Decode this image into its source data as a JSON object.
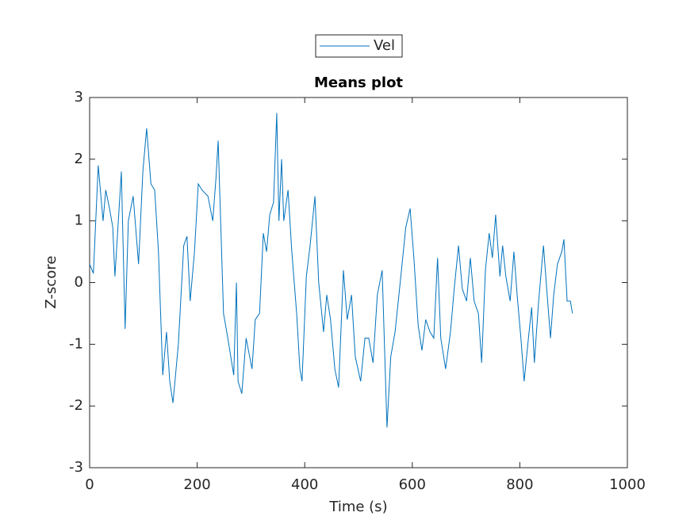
{
  "chart_data": {
    "type": "line",
    "title": "Means plot",
    "xlabel": "Time (s)",
    "ylabel": "Z-score",
    "x": [
      0,
      7,
      16,
      25,
      30,
      37,
      43,
      47,
      52,
      59,
      66,
      72,
      81,
      91,
      99,
      106,
      114,
      121,
      128,
      136,
      143,
      149,
      155,
      165,
      175,
      181,
      187,
      195,
      202,
      209,
      220,
      229,
      235,
      239,
      249,
      257,
      268,
      273,
      276,
      283,
      291,
      302,
      308,
      316,
      323,
      329,
      335,
      342,
      348,
      352,
      357,
      361,
      369,
      376,
      385,
      391,
      395,
      403,
      410,
      419,
      426,
      435,
      441,
      448,
      456,
      463,
      472,
      479,
      487,
      494,
      504,
      512,
      519,
      527,
      535,
      544,
      553,
      560,
      568,
      574,
      581,
      588,
      596,
      603,
      611,
      618,
      625,
      633,
      640,
      647,
      653,
      662,
      671,
      678,
      686,
      693,
      701,
      708,
      715,
      723,
      729,
      736,
      743,
      749,
      755,
      763,
      768,
      774,
      782,
      789,
      795,
      802,
      808,
      816,
      822,
      827,
      835,
      844,
      850,
      857,
      863,
      870,
      878,
      882,
      888,
      894,
      898
    ],
    "series": [
      {
        "name": "Vel",
        "color": "#0072bd",
        "values": [
          0.3,
          0.15,
          1.9,
          1.0,
          1.5,
          1.2,
          0.9,
          0.1,
          0.8,
          1.8,
          -0.75,
          1.0,
          1.4,
          0.3,
          1.8,
          2.5,
          1.6,
          1.5,
          0.5,
          -1.5,
          -0.8,
          -1.6,
          -1.95,
          -1.0,
          0.6,
          0.75,
          -0.3,
          0.5,
          1.6,
          1.5,
          1.4,
          1.0,
          1.7,
          2.3,
          -0.5,
          -0.9,
          -1.5,
          0.0,
          -1.6,
          -1.8,
          -0.9,
          -1.4,
          -0.6,
          -0.5,
          0.8,
          0.5,
          1.1,
          1.3,
          2.75,
          1.0,
          2.0,
          1.0,
          1.5,
          0.5,
          -0.5,
          -1.4,
          -1.6,
          0.1,
          0.6,
          1.4,
          0.0,
          -0.8,
          -0.2,
          -0.6,
          -1.4,
          -1.7,
          0.2,
          -0.6,
          -0.2,
          -1.2,
          -1.6,
          -0.9,
          -0.9,
          -1.3,
          -0.2,
          0.2,
          -2.35,
          -1.2,
          -0.8,
          -0.3,
          0.3,
          0.9,
          1.2,
          0.4,
          -0.7,
          -1.1,
          -0.6,
          -0.8,
          -0.9,
          0.4,
          -0.9,
          -1.4,
          -0.8,
          -0.1,
          0.6,
          -0.1,
          -0.3,
          0.4,
          -0.3,
          -0.5,
          -1.3,
          0.2,
          0.8,
          0.4,
          1.1,
          0.1,
          0.6,
          0.1,
          -0.3,
          0.5,
          -0.2,
          -0.9,
          -1.6,
          -0.9,
          -0.4,
          -1.3,
          -0.3,
          0.6,
          -0.1,
          -0.9,
          -0.2,
          0.3,
          0.5,
          0.7,
          -0.3,
          -0.3,
          -0.5
        ]
      }
    ],
    "xlim": [
      0,
      1000
    ],
    "xticks": [
      0,
      200,
      400,
      600,
      800,
      1000
    ],
    "ylim": [
      -3,
      3
    ],
    "yticks": [
      -3,
      -2,
      -1,
      0,
      1,
      2,
      3
    ],
    "legend": "top"
  }
}
